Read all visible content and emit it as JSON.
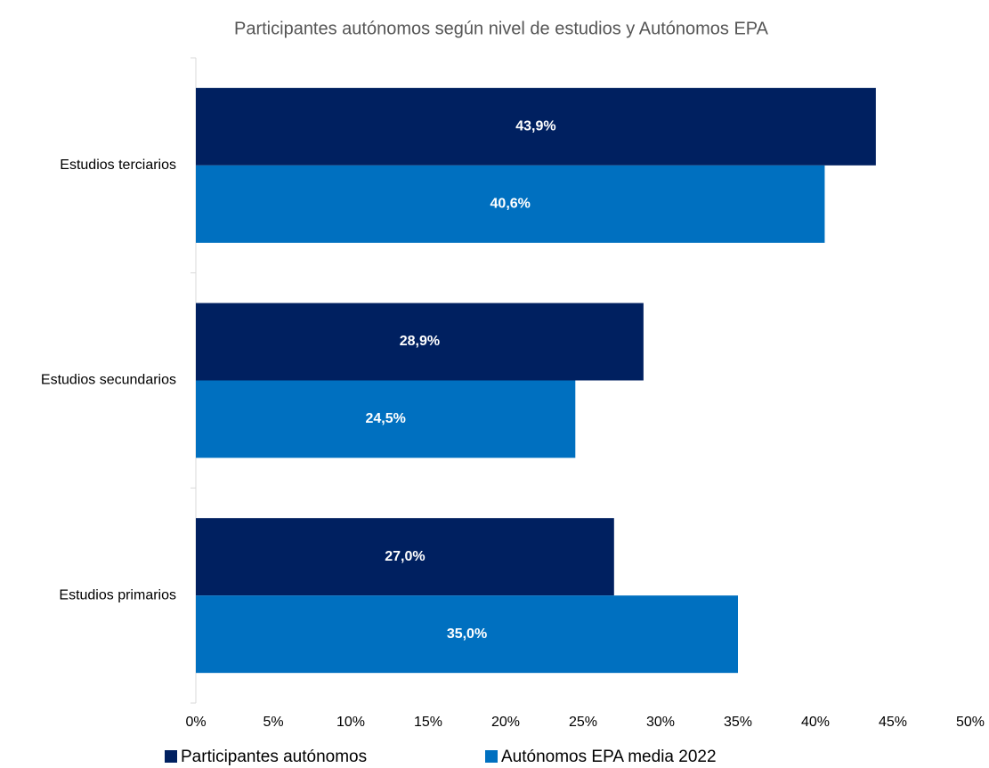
{
  "chart_data": {
    "type": "bar",
    "title": "Participantes autónomos según nivel de estudios y  Autónomos EPA",
    "categories": [
      "Estudios terciarios",
      "Estudios secundarios",
      "Estudios primarios"
    ],
    "series": [
      {
        "name": "Participantes autónomos",
        "color": "#002060",
        "values": [
          43.9,
          28.9,
          27.0
        ],
        "value_labels": [
          "43,9%",
          "28,9%",
          "27,0%"
        ]
      },
      {
        "name": "Autónomos EPA media 2022",
        "color": "#0070c0",
        "values": [
          40.6,
          24.5,
          35.0
        ],
        "value_labels": [
          "40,6%",
          "24,5%",
          "35,0%"
        ]
      }
    ],
    "xlim": [
      0,
      50
    ],
    "xticks": [
      {
        "value": 0,
        "label": "0%"
      },
      {
        "value": 5,
        "label": "5%"
      },
      {
        "value": 10,
        "label": "10%"
      },
      {
        "value": 15,
        "label": "15%"
      },
      {
        "value": 20,
        "label": "20%"
      },
      {
        "value": 25,
        "label": "25%"
      },
      {
        "value": 30,
        "label": "30%"
      },
      {
        "value": 35,
        "label": "35%"
      },
      {
        "value": 40,
        "label": "40%"
      },
      {
        "value": 45,
        "label": "45%"
      },
      {
        "value": 50,
        "label": "50%"
      }
    ]
  }
}
